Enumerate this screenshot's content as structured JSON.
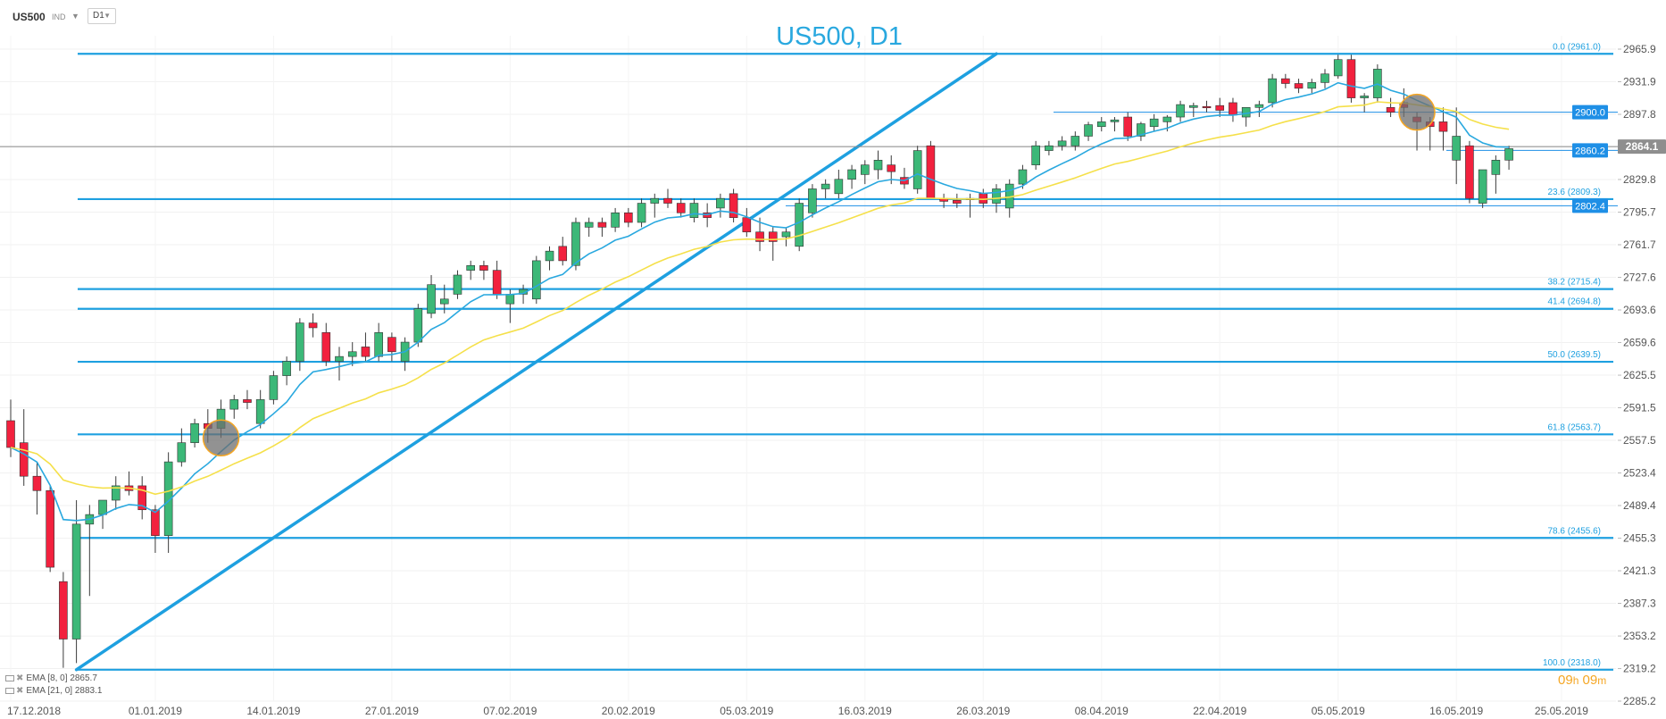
{
  "toolbar": {
    "symbol": "US500",
    "instrument_type": "IND",
    "interval": "D1"
  },
  "chart_data": {
    "type": "candlestick",
    "title": "US500, D1",
    "y_axis": {
      "ticks": [
        "2965.9",
        "2931.9",
        "2897.8",
        "2863.8",
        "2829.8",
        "2795.7",
        "2761.7",
        "2727.6",
        "2693.6",
        "2659.6",
        "2625.5",
        "2591.5",
        "2557.5",
        "2523.4",
        "2489.4",
        "2455.3",
        "2421.3",
        "2387.3",
        "2353.2",
        "2319.2",
        "2285.2"
      ],
      "tick_values": [
        2965.9,
        2931.9,
        2897.8,
        2863.8,
        2829.8,
        2795.7,
        2761.7,
        2727.6,
        2693.6,
        2659.6,
        2625.5,
        2591.5,
        2557.5,
        2523.4,
        2489.4,
        2455.3,
        2421.3,
        2387.3,
        2353.2,
        2319.2,
        2285.2
      ],
      "range": [
        2285.2,
        2965.9
      ]
    },
    "x_axis": {
      "labels": [
        "17.12.2018",
        "01.01.2019",
        "14.01.2019",
        "27.01.2019",
        "07.02.2019",
        "20.02.2019",
        "05.03.2019",
        "16.03.2019",
        "26.03.2019",
        "08.04.2019",
        "22.04.2019",
        "05.05.2019",
        "16.05.2019",
        "25.05.2019"
      ],
      "label_bar_index": [
        0,
        11,
        20,
        29,
        38,
        47,
        56,
        65,
        74,
        83,
        92,
        101,
        110,
        118
      ]
    },
    "candles": [
      [
        2578,
        2600,
        2540,
        2550
      ],
      [
        2555,
        2590,
        2510,
        2520
      ],
      [
        2520,
        2535,
        2480,
        2505
      ],
      [
        2505,
        2510,
        2420,
        2425
      ],
      [
        2410,
        2420,
        2320,
        2350
      ],
      [
        2350,
        2495,
        2325,
        2470
      ],
      [
        2470,
        2490,
        2395,
        2480
      ],
      [
        2480,
        2495,
        2465,
        2495
      ],
      [
        2495,
        2520,
        2485,
        2510
      ],
      [
        2510,
        2525,
        2500,
        2505
      ],
      [
        2510,
        2520,
        2475,
        2485
      ],
      [
        2485,
        2490,
        2440,
        2458
      ],
      [
        2458,
        2545,
        2440,
        2535
      ],
      [
        2535,
        2570,
        2530,
        2555
      ],
      [
        2555,
        2580,
        2550,
        2575
      ],
      [
        2575,
        2590,
        2555,
        2570
      ],
      [
        2570,
        2600,
        2560,
        2590
      ],
      [
        2590,
        2605,
        2580,
        2600
      ],
      [
        2600,
        2610,
        2590,
        2597
      ],
      [
        2575,
        2610,
        2570,
        2600
      ],
      [
        2600,
        2630,
        2595,
        2625
      ],
      [
        2625,
        2645,
        2615,
        2640
      ],
      [
        2640,
        2685,
        2630,
        2680
      ],
      [
        2680,
        2690,
        2665,
        2675
      ],
      [
        2670,
        2680,
        2635,
        2640
      ],
      [
        2640,
        2655,
        2620,
        2645
      ],
      [
        2645,
        2660,
        2635,
        2650
      ],
      [
        2655,
        2670,
        2640,
        2645
      ],
      [
        2645,
        2680,
        2640,
        2670
      ],
      [
        2665,
        2670,
        2640,
        2650
      ],
      [
        2640,
        2665,
        2630,
        2660
      ],
      [
        2660,
        2700,
        2655,
        2695
      ],
      [
        2690,
        2730,
        2685,
        2720
      ],
      [
        2700,
        2720,
        2690,
        2705
      ],
      [
        2710,
        2735,
        2705,
        2730
      ],
      [
        2735,
        2745,
        2725,
        2740
      ],
      [
        2740,
        2745,
        2725,
        2735
      ],
      [
        2735,
        2745,
        2705,
        2710
      ],
      [
        2700,
        2715,
        2680,
        2710
      ],
      [
        2710,
        2720,
        2700,
        2715
      ],
      [
        2705,
        2750,
        2700,
        2745
      ],
      [
        2745,
        2760,
        2735,
        2755
      ],
      [
        2760,
        2770,
        2740,
        2745
      ],
      [
        2740,
        2790,
        2735,
        2785
      ],
      [
        2780,
        2790,
        2770,
        2785
      ],
      [
        2785,
        2790,
        2770,
        2780
      ],
      [
        2780,
        2800,
        2775,
        2795
      ],
      [
        2795,
        2800,
        2780,
        2785
      ],
      [
        2785,
        2810,
        2780,
        2805
      ],
      [
        2805,
        2815,
        2790,
        2810
      ],
      [
        2810,
        2820,
        2800,
        2805
      ],
      [
        2805,
        2810,
        2790,
        2795
      ],
      [
        2790,
        2810,
        2785,
        2805
      ],
      [
        2795,
        2805,
        2780,
        2790
      ],
      [
        2800,
        2815,
        2790,
        2810
      ],
      [
        2815,
        2820,
        2785,
        2790
      ],
      [
        2790,
        2800,
        2770,
        2775
      ],
      [
        2775,
        2790,
        2755,
        2765
      ],
      [
        2775,
        2780,
        2745,
        2765
      ],
      [
        2770,
        2780,
        2760,
        2775
      ],
      [
        2760,
        2810,
        2755,
        2805
      ],
      [
        2795,
        2825,
        2790,
        2820
      ],
      [
        2820,
        2830,
        2810,
        2825
      ],
      [
        2815,
        2840,
        2810,
        2830
      ],
      [
        2830,
        2845,
        2820,
        2840
      ],
      [
        2835,
        2850,
        2825,
        2845
      ],
      [
        2840,
        2860,
        2830,
        2850
      ],
      [
        2845,
        2855,
        2825,
        2838
      ],
      [
        2832,
        2842,
        2820,
        2825
      ],
      [
        2820,
        2865,
        2815,
        2860
      ],
      [
        2865,
        2870,
        2810,
        2810
      ],
      [
        2810,
        2815,
        2800,
        2807
      ],
      [
        2808,
        2815,
        2800,
        2805
      ],
      [
        2810,
        2815,
        2790,
        2810
      ],
      [
        2815,
        2820,
        2800,
        2805
      ],
      [
        2805,
        2825,
        2795,
        2820
      ],
      [
        2800,
        2830,
        2790,
        2825
      ],
      [
        2825,
        2845,
        2820,
        2840
      ],
      [
        2845,
        2870,
        2840,
        2865
      ],
      [
        2860,
        2870,
        2855,
        2865
      ],
      [
        2865,
        2875,
        2860,
        2870
      ],
      [
        2865,
        2880,
        2860,
        2875
      ],
      [
        2875,
        2890,
        2870,
        2887
      ],
      [
        2885,
        2895,
        2880,
        2890
      ],
      [
        2890,
        2895,
        2880,
        2892
      ],
      [
        2895,
        2900,
        2870,
        2875
      ],
      [
        2875,
        2890,
        2870,
        2888
      ],
      [
        2885,
        2898,
        2880,
        2893
      ],
      [
        2890,
        2897,
        2880,
        2895
      ],
      [
        2895,
        2912,
        2890,
        2908
      ],
      [
        2905,
        2910,
        2895,
        2907
      ],
      [
        2906,
        2912,
        2900,
        2905
      ],
      [
        2907,
        2915,
        2895,
        2902
      ],
      [
        2910,
        2915,
        2890,
        2897
      ],
      [
        2895,
        2900,
        2885,
        2905
      ],
      [
        2905,
        2912,
        2895,
        2908
      ],
      [
        2910,
        2940,
        2905,
        2935
      ],
      [
        2935,
        2940,
        2925,
        2930
      ],
      [
        2930,
        2935,
        2920,
        2925
      ],
      [
        2925,
        2935,
        2920,
        2931
      ],
      [
        2931,
        2945,
        2925,
        2940
      ],
      [
        2938,
        2960,
        2935,
        2955
      ],
      [
        2955,
        2960,
        2910,
        2915
      ],
      [
        2915,
        2920,
        2900,
        2917
      ],
      [
        2915,
        2950,
        2910,
        2945
      ],
      [
        2905,
        2915,
        2895,
        2900
      ],
      [
        2910,
        2925,
        2895,
        2905
      ],
      [
        2895,
        2900,
        2860,
        2890
      ],
      [
        2890,
        2895,
        2860,
        2885
      ],
      [
        2890,
        2905,
        2860,
        2880
      ],
      [
        2850,
        2905,
        2825,
        2875
      ],
      [
        2865,
        2870,
        2805,
        2810
      ],
      [
        2805,
        2840,
        2800,
        2840
      ],
      [
        2835,
        2855,
        2815,
        2850
      ],
      [
        2850,
        2865,
        2840,
        2862
      ]
    ],
    "indicators": [
      {
        "label": "EMA [8, 0]",
        "value": "2865.7",
        "color": "#29a8df"
      },
      {
        "label": "EMA [21, 0]",
        "value": "2883.1",
        "color": "#f5e04a"
      }
    ],
    "fibonacci": [
      {
        "ratio": "0.0 (2961.0)",
        "price": 2961.0
      },
      {
        "ratio": "23.6 (2809.3)",
        "price": 2809.3
      },
      {
        "ratio": "38.2 (2715.4)",
        "price": 2715.4
      },
      {
        "ratio": "41.4 (2694.8)",
        "price": 2694.8
      },
      {
        "ratio": "50.0 (2639.5)",
        "price": 2639.5
      },
      {
        "ratio": "61.8 (2563.7)",
        "price": 2563.7
      },
      {
        "ratio": "78.6 (2455.6)",
        "price": 2455.6
      },
      {
        "ratio": "100.0 (2318.0)",
        "price": 2318.0
      }
    ],
    "trendline": {
      "from": [
        5,
        2318.0
      ],
      "to": [
        75,
        2961.0
      ]
    },
    "price_markers": [
      {
        "label": "2900.0",
        "price": 2900.0,
        "role": "level"
      },
      {
        "label": "2860.2",
        "price": 2860.2,
        "role": "level"
      },
      {
        "label": "2802.4",
        "price": 2802.4,
        "role": "level"
      },
      {
        "label": "2864.1",
        "price": 2864.1,
        "role": "current"
      }
    ],
    "highlight_circles": [
      {
        "bar": 16,
        "price": 2560.0
      },
      {
        "bar": 107,
        "price": 2900.0
      }
    ],
    "colors": {
      "bull": "#3cb878",
      "bear": "#f2213e",
      "fib": "#1ea0e0",
      "marker": "#1e8fe6",
      "current": "#888888"
    },
    "grid": true
  },
  "countdown": {
    "hours": "09",
    "h_unit": "h",
    "minutes": "09",
    "m_unit": "m"
  }
}
